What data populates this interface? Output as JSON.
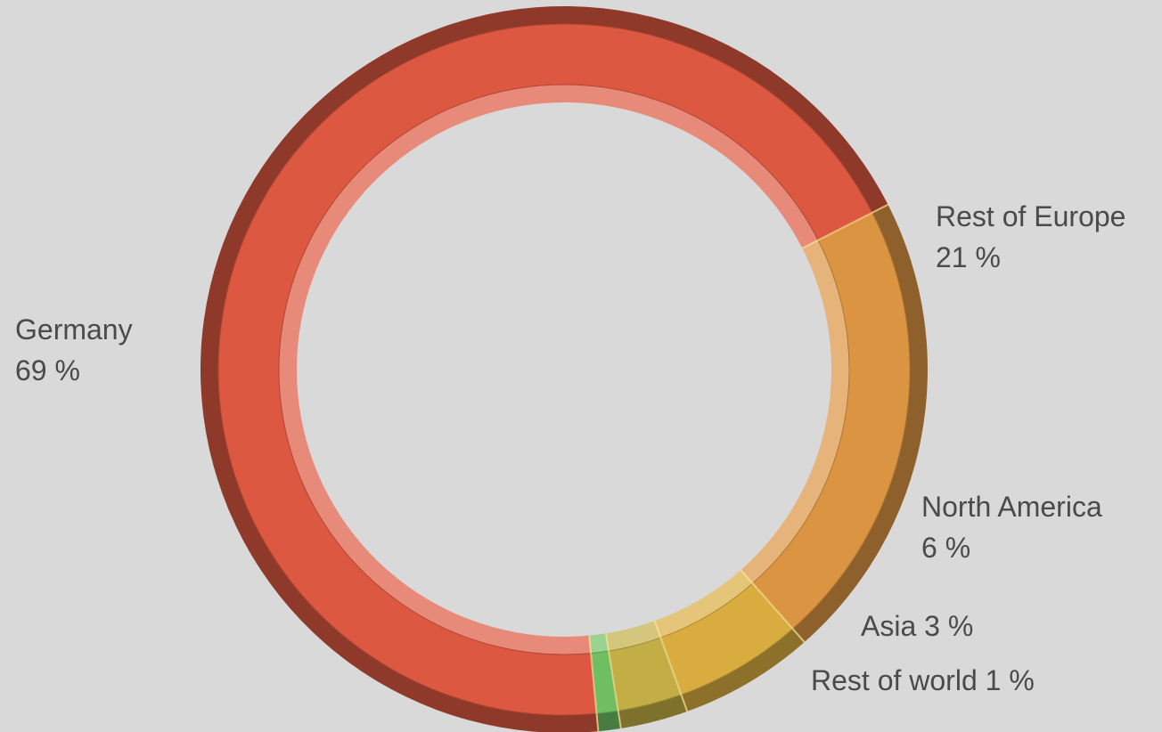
{
  "chart_data": {
    "type": "pie",
    "variant": "donut",
    "start_angle_deg": 63,
    "direction": "clockwise",
    "slices": [
      {
        "name": "Rest of Europe",
        "value": 21,
        "label_line1": "Rest of Europe",
        "label_line2": "21 %",
        "color": "#db9442"
      },
      {
        "name": "North America",
        "value": 6,
        "label_line1": "North America",
        "label_line2": "6 %",
        "color": "#d9ac40"
      },
      {
        "name": "Asia",
        "value": 3,
        "label_line1": "Asia 3 %",
        "label_line2": "",
        "color": "#c2ae44"
      },
      {
        "name": "Rest of world",
        "value": 1,
        "label_line1": "Rest of world 1 %",
        "label_line2": "",
        "color": "#6fbf62"
      },
      {
        "name": "Germany",
        "value": 69,
        "label_line1": "Germany",
        "label_line2": "69 %",
        "color": "#dc5840"
      }
    ],
    "legend": "none",
    "grid": false
  }
}
